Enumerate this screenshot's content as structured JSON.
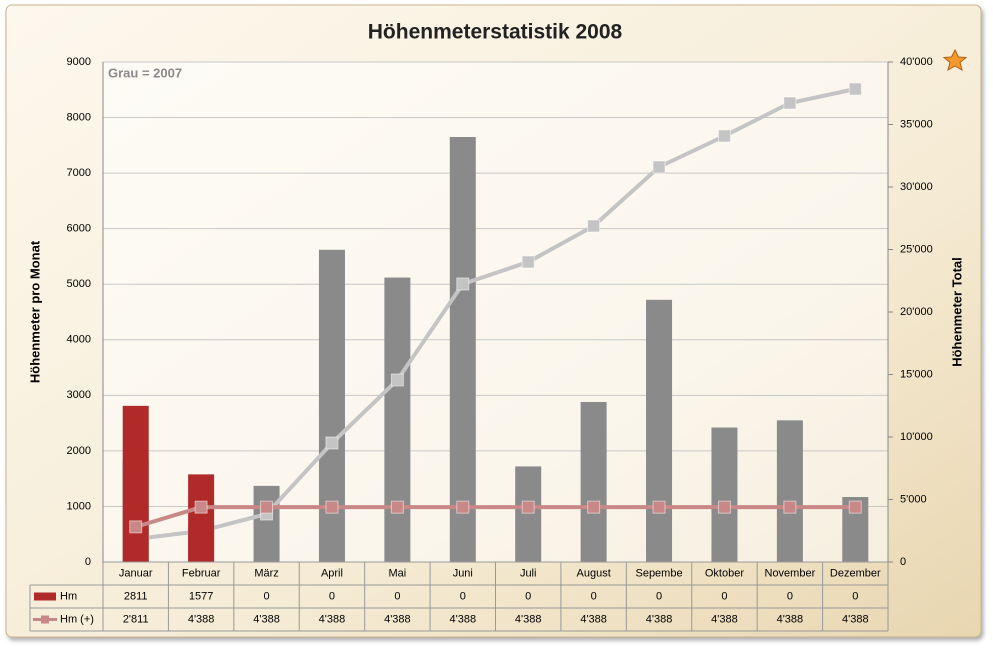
{
  "chart_data": {
    "type": "bar",
    "title": "Höhenmeterstatistik 2008",
    "annotation": "Grau = 2007",
    "y_label": "Höhenmeter pro Monat",
    "y2_label": "Höhenmeter Total",
    "categories": [
      "Januar",
      "Februar",
      "März",
      "April",
      "Mai",
      "Juni",
      "Juli",
      "August",
      "Sepembe",
      "Oktober",
      "November",
      "Dezember"
    ],
    "ylim": [
      0,
      9000
    ],
    "yticks": [
      0,
      1000,
      2000,
      3000,
      4000,
      5000,
      6000,
      7000,
      8000,
      9000
    ],
    "y2lim": [
      0,
      40000
    ],
    "y2ticks": [
      0,
      {
        "value": 5000,
        "label": "5'000"
      },
      {
        "value": 10000,
        "label": "10'000"
      },
      {
        "value": 15000,
        "label": "15'000"
      },
      {
        "value": 20000,
        "label": "20'000"
      },
      {
        "value": 25000,
        "label": "25'000"
      },
      {
        "value": 30000,
        "label": "30'000"
      },
      {
        "value": 35000,
        "label": "35'000"
      },
      {
        "value": 40000,
        "label": "40'000"
      }
    ],
    "grid": true,
    "series": [
      {
        "type": "bar",
        "color": "#8a8a8a",
        "values": [
          1840,
          640,
          1370,
          5620,
          5120,
          7650,
          1720,
          2880,
          4720,
          2420,
          2550,
          1170
        ]
      },
      {
        "type": "line",
        "axis": "y2",
        "color": "#c4c4c4",
        "values": [
          1840,
          2480,
          3840,
          9520,
          14560,
          22240,
          24000,
          26880,
          31600,
          34080,
          36720,
          37840
        ]
      },
      {
        "name": "Hm",
        "type": "bar",
        "color": "#b02a2a",
        "values": [
          2811,
          1577,
          0,
          0,
          0,
          0,
          0,
          0,
          0,
          0,
          0,
          0
        ]
      },
      {
        "name": "Hm (+)",
        "type": "line",
        "axis": "y2",
        "color": "#c98888",
        "values": [
          2811,
          4388,
          4388,
          4388,
          4388,
          4388,
          4388,
          4388,
          4388,
          4388,
          4388,
          4388
        ],
        "value_labels": [
          "2'811",
          "4'388",
          "4'388",
          "4'388",
          "4'388",
          "4'388",
          "4'388",
          "4'388",
          "4'388",
          "4'388",
          "4'388",
          "4'388"
        ]
      }
    ]
  }
}
